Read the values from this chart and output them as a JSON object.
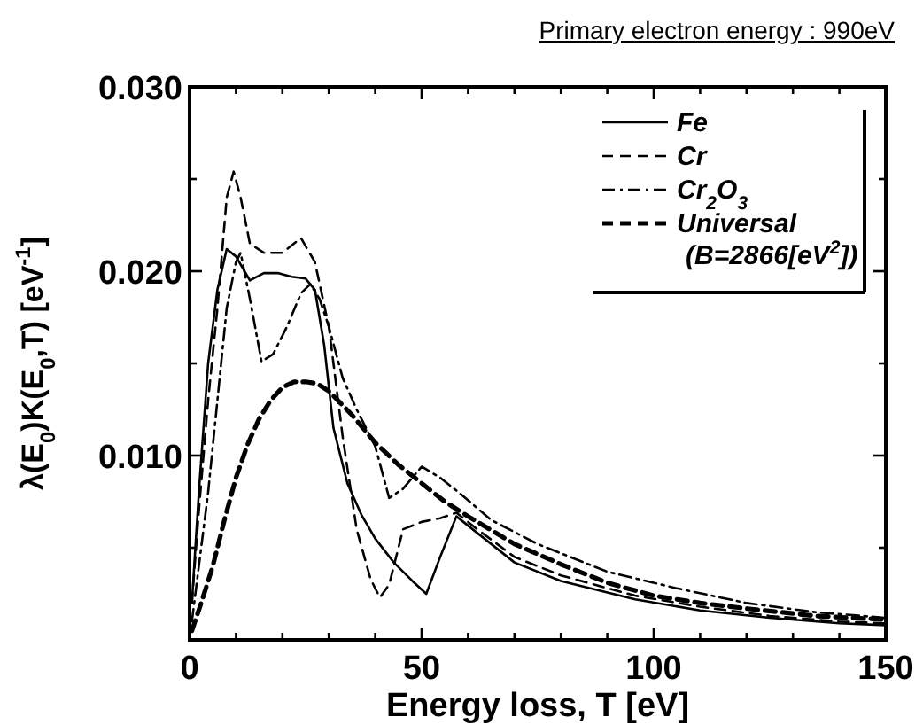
{
  "chart_data": {
    "type": "line",
    "title": "Primary electron energy : 990eV",
    "xlabel": "Energy loss, T [eV]",
    "ylabel": "λ(E$_{0}$)K(E$_{0}$,T) [eV$^{-1}$]",
    "xlim": [
      0,
      150
    ],
    "ylim": [
      0,
      0.03
    ],
    "xticks": [
      0,
      {
        "value": 10,
        "label": null
      },
      {
        "value": 20,
        "label": null
      },
      {
        "value": 30,
        "label": null
      },
      {
        "value": 40,
        "label": null
      },
      50,
      {
        "value": 60,
        "label": null
      },
      {
        "value": 70,
        "label": null
      },
      {
        "value": 80,
        "label": null
      },
      {
        "value": 90,
        "label": null
      },
      100,
      {
        "value": 110,
        "label": null
      },
      {
        "value": 120,
        "label": null
      },
      {
        "value": 130,
        "label": null
      },
      {
        "value": 140,
        "label": null
      },
      150
    ],
    "yticks": [
      {
        "value": 0.005,
        "label": null
      },
      {
        "value": 0.01,
        "label": "0.010"
      },
      {
        "value": 0.015,
        "label": null
      },
      {
        "value": 0.02,
        "label": "0.020"
      },
      {
        "value": 0.025,
        "label": null
      },
      {
        "value": 0.03,
        "label": "0.030"
      }
    ],
    "grid": false,
    "legend": "top right",
    "marker": "none",
    "series": [
      {
        "name": "Fe",
        "color": "#000000",
        "line_style": "solid",
        "x": [
          0.5,
          2,
          4,
          6,
          8,
          10,
          13,
          16,
          19,
          22,
          25,
          27,
          29,
          31,
          34,
          37,
          40,
          44,
          48,
          51,
          54,
          57.5,
          62,
          70,
          80,
          96,
          110,
          125,
          140,
          150
        ],
        "values": [
          0.002,
          0.008,
          0.015,
          0.019,
          0.0212,
          0.0208,
          0.0195,
          0.0199,
          0.0199,
          0.0197,
          0.0196,
          0.019,
          0.016,
          0.0115,
          0.0085,
          0.0068,
          0.0055,
          0.0042,
          0.0032,
          0.0025,
          0.0045,
          0.0067,
          0.0058,
          0.0042,
          0.0032,
          0.0022,
          0.0016,
          0.0012,
          0.0009,
          0.0008
        ]
      },
      {
        "name": "Cr",
        "color": "#000000",
        "line_style": "dashed",
        "x": [
          0.5,
          2,
          4,
          6,
          8,
          9.5,
          11,
          13,
          16,
          20,
          24,
          27,
          30,
          33,
          36,
          39,
          41,
          43,
          46,
          50,
          54,
          57.5,
          62,
          70,
          80,
          96,
          110,
          125,
          140,
          150
        ],
        "values": [
          0.002,
          0.007,
          0.013,
          0.018,
          0.024,
          0.0254,
          0.024,
          0.0215,
          0.021,
          0.021,
          0.0218,
          0.0205,
          0.017,
          0.011,
          0.006,
          0.0033,
          0.0023,
          0.003,
          0.006,
          0.0064,
          0.0066,
          0.0069,
          0.006,
          0.0045,
          0.0035,
          0.0024,
          0.0018,
          0.0013,
          0.001,
          0.0009
        ]
      },
      {
        "name": "Cr$_{2}$O$_{3}$",
        "color": "#000000",
        "line_style": "dotted",
        "x": [
          0.5,
          2,
          4,
          6,
          8,
          10,
          11,
          13,
          15.5,
          18,
          21,
          24,
          26,
          28,
          30,
          33,
          36,
          40,
          43,
          46,
          50,
          54,
          58,
          65,
          75,
          90,
          105,
          120,
          135,
          150
        ],
        "values": [
          0.001,
          0.004,
          0.008,
          0.013,
          0.018,
          0.0205,
          0.021,
          0.0185,
          0.0151,
          0.0155,
          0.017,
          0.0188,
          0.0193,
          0.0185,
          0.017,
          0.0142,
          0.0125,
          0.0105,
          0.0077,
          0.0082,
          0.0094,
          0.0088,
          0.008,
          0.0065,
          0.0052,
          0.0037,
          0.0028,
          0.002,
          0.0015,
          0.0012
        ]
      },
      {
        "name": "Universal (B=2866[eV$^{2}$])",
        "color": "#000000",
        "line_style": "dashed",
        "x": [
          0.5,
          2.5,
          5,
          7.5,
          10,
          12.5,
          15,
          17.5,
          20,
          22.5,
          25,
          27.5,
          30,
          35,
          40,
          45,
          50,
          55,
          60,
          70,
          80,
          90,
          100,
          110,
          120,
          135,
          150
        ],
        "values": [
          0.0005,
          0.002,
          0.004,
          0.0065,
          0.0088,
          0.0106,
          0.012,
          0.013,
          0.0137,
          0.014,
          0.014,
          0.0139,
          0.0135,
          0.0122,
          0.0107,
          0.0095,
          0.0085,
          0.0075,
          0.0067,
          0.0052,
          0.0041,
          0.0031,
          0.0024,
          0.002,
          0.0017,
          0.0013,
          0.0011
        ]
      }
    ]
  }
}
